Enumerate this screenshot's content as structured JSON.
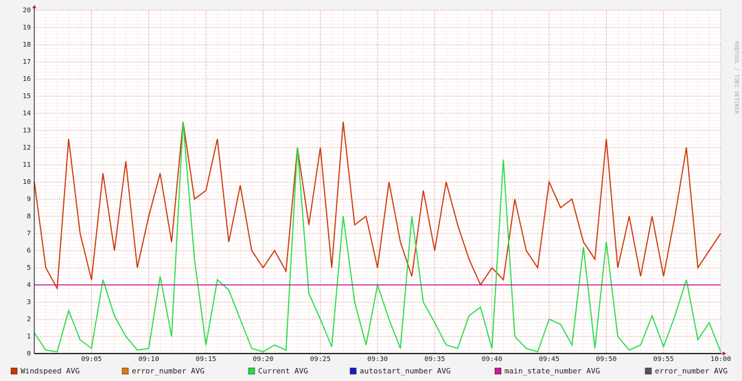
{
  "chart_data": {
    "type": "line",
    "watermark": "RRDTOOL / TOBI OETIKER",
    "x": [
      "09:00",
      "09:01",
      "09:02",
      "09:03",
      "09:04",
      "09:05",
      "09:06",
      "09:07",
      "09:08",
      "09:09",
      "09:10",
      "09:11",
      "09:12",
      "09:13",
      "09:14",
      "09:15",
      "09:16",
      "09:17",
      "09:18",
      "09:19",
      "09:20",
      "09:21",
      "09:22",
      "09:23",
      "09:24",
      "09:25",
      "09:26",
      "09:27",
      "09:28",
      "09:29",
      "09:30",
      "09:31",
      "09:32",
      "09:33",
      "09:34",
      "09:35",
      "09:36",
      "09:37",
      "09:38",
      "09:39",
      "09:40",
      "09:41",
      "09:42",
      "09:43",
      "09:44",
      "09:45",
      "09:46",
      "09:47",
      "09:48",
      "09:49",
      "09:50",
      "09:51",
      "09:52",
      "09:53",
      "09:54",
      "09:55",
      "09:56",
      "09:57",
      "09:58",
      "09:59",
      "10:00"
    ],
    "xlim": [
      "09:00",
      "10:00"
    ],
    "xticks": [
      "09:05",
      "09:10",
      "09:15",
      "09:20",
      "09:25",
      "09:30",
      "09:35",
      "09:40",
      "09:45",
      "09:50",
      "09:55",
      "10:00"
    ],
    "ylim": [
      0,
      20
    ],
    "yticks": [
      0,
      1,
      2,
      3,
      4,
      5,
      6,
      7,
      8,
      9,
      10,
      11,
      12,
      13,
      14,
      15,
      16,
      17,
      18,
      19,
      20
    ],
    "grid": true,
    "series": [
      {
        "name": "Windspeed AVG",
        "color": "#cc3300",
        "values": [
          10,
          5,
          3.8,
          12.5,
          7,
          4.3,
          10.5,
          6,
          11.2,
          5,
          8,
          10.5,
          6.5,
          13.5,
          9,
          9.5,
          12.5,
          6.5,
          9.8,
          6,
          5,
          6,
          4.8,
          12,
          7.5,
          12,
          5,
          13.5,
          7.5,
          8,
          5,
          10,
          6.5,
          4.5,
          9.5,
          6,
          10,
          7.5,
          5.5,
          4,
          5,
          4.3,
          9,
          6,
          5,
          10,
          8.5,
          9,
          6.5,
          5.5,
          12.5,
          5,
          8,
          4.5,
          8,
          4.5,
          8,
          12,
          5,
          6,
          7
        ]
      },
      {
        "name": "error_number AVG",
        "color": "#e07a10",
        "values": [
          0,
          0,
          0,
          0,
          0,
          0,
          0,
          0,
          0,
          0,
          0,
          0,
          0,
          0,
          0,
          0,
          0,
          0,
          0,
          0,
          0,
          0,
          0,
          0,
          0,
          0,
          0,
          0,
          0,
          0,
          0,
          0,
          0,
          0,
          0,
          0,
          0,
          0,
          0,
          0,
          0,
          0,
          0,
          0,
          0,
          0,
          0,
          0,
          0,
          0,
          0,
          0,
          0,
          0,
          0,
          0,
          0,
          0,
          0,
          0,
          0
        ]
      },
      {
        "name": "Current AVG",
        "color": "#22dd44",
        "values": [
          1.2,
          0.2,
          0.1,
          2.5,
          0.8,
          0.3,
          4.3,
          2.2,
          1,
          0.2,
          0.3,
          4.5,
          1,
          13.5,
          5.5,
          0.5,
          4.3,
          3.7,
          2,
          0.3,
          0.1,
          0.5,
          0.2,
          12,
          3.5,
          2,
          0.4,
          8,
          3,
          0.5,
          4,
          2,
          0.3,
          8,
          3,
          1.8,
          0.5,
          0.3,
          2.2,
          2.7,
          0.3,
          11.3,
          1,
          0.3,
          0.1,
          2,
          1.7,
          0.5,
          6.2,
          0.3,
          6.5,
          1,
          0.2,
          0.5,
          2.2,
          0.4,
          2.2,
          4.3,
          0.8,
          1.8,
          0.1
        ]
      },
      {
        "name": "autostart_number AVG",
        "color": "#1a1acc",
        "values": [
          0,
          0,
          0,
          0,
          0,
          0,
          0,
          0,
          0,
          0,
          0,
          0,
          0,
          0,
          0,
          0,
          0,
          0,
          0,
          0,
          0,
          0,
          0,
          0,
          0,
          0,
          0,
          0,
          0,
          0,
          0,
          0,
          0,
          0,
          0,
          0,
          0,
          0,
          0,
          0,
          0,
          0,
          0,
          0,
          0,
          0,
          0,
          0,
          0,
          0,
          0,
          0,
          0,
          0,
          0,
          0,
          0,
          0,
          0,
          0,
          0
        ]
      },
      {
        "name": "main_state_number AVG",
        "color": "#cc1a99",
        "values": [
          4,
          4,
          4,
          4,
          4,
          4,
          4,
          4,
          4,
          4,
          4,
          4,
          4,
          4,
          4,
          4,
          4,
          4,
          4,
          4,
          4,
          4,
          4,
          4,
          4,
          4,
          4,
          4,
          4,
          4,
          4,
          4,
          4,
          4,
          4,
          4,
          4,
          4,
          4,
          4,
          4,
          4,
          4,
          4,
          4,
          4,
          4,
          4,
          4,
          4,
          4,
          4,
          4,
          4,
          4,
          4,
          4,
          4,
          4,
          4,
          4
        ]
      },
      {
        "name": "error_number AVG",
        "color": "#555555",
        "values": [
          0,
          0,
          0,
          0,
          0,
          0,
          0,
          0,
          0,
          0,
          0,
          0,
          0,
          0,
          0,
          0,
          0,
          0,
          0,
          0,
          0,
          0,
          0,
          0,
          0,
          0,
          0,
          0,
          0,
          0,
          0,
          0,
          0,
          0,
          0,
          0,
          0,
          0,
          0,
          0,
          0,
          0,
          0,
          0,
          0,
          0,
          0,
          0,
          0,
          0,
          0,
          0,
          0,
          0,
          0,
          0,
          0,
          0,
          0,
          0,
          0
        ]
      }
    ]
  }
}
